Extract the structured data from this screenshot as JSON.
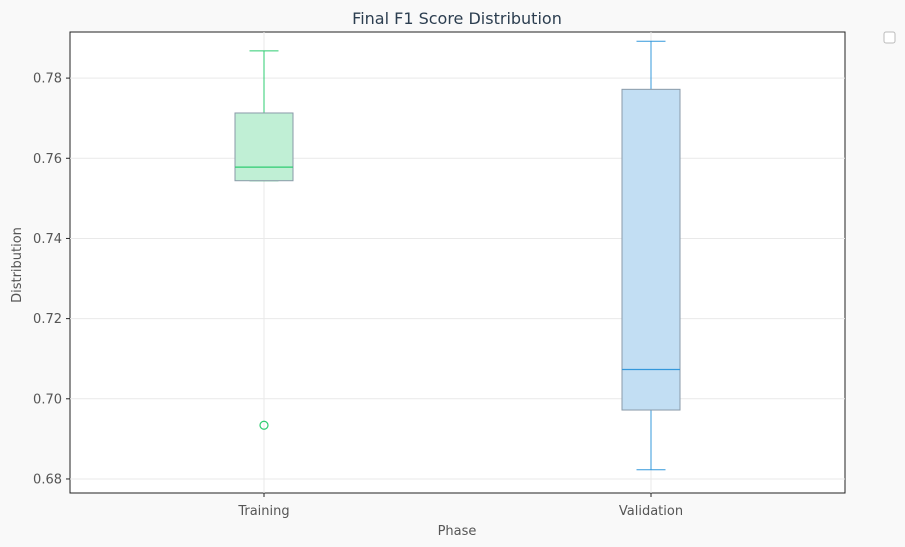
{
  "chart_data": {
    "type": "box",
    "title": "Final F1 Score Distribution",
    "xlabel": "Phase",
    "ylabel": "Distribution",
    "ylim": [
      0.6765,
      0.7915
    ],
    "yticks": [
      0.68,
      0.7,
      0.72,
      0.74,
      0.76,
      0.78
    ],
    "ytick_labels": [
      "0.68",
      "0.70",
      "0.72",
      "0.74",
      "0.76",
      "0.78"
    ],
    "grid": true,
    "legend": {
      "placement": "top-right",
      "entries": []
    },
    "categories": [
      "Training",
      "Validation"
    ],
    "boxes": [
      {
        "category": "Training",
        "whisker_low": 0.7544,
        "q1": 0.7544,
        "median": 0.7578,
        "q3": 0.7713,
        "whisker_high": 0.7868,
        "outliers": [
          0.6934
        ],
        "color": "#2ecc71",
        "fill": "#c0efd5"
      },
      {
        "category": "Validation",
        "whisker_low": 0.6823,
        "q1": 0.6972,
        "median": 0.7073,
        "q3": 0.7772,
        "whisker_high": 0.7892,
        "outliers": [],
        "color": "#3498db",
        "fill": "#c2def3"
      }
    ]
  }
}
